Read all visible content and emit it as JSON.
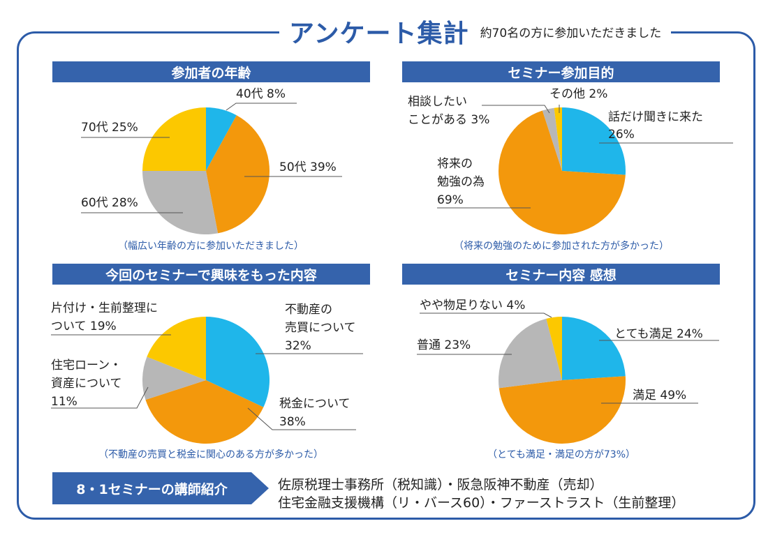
{
  "header": {
    "title": "アンケート集計",
    "subtitle": "約70名の方に参加いただきました"
  },
  "colors": {
    "brand": "#3563ac",
    "cyan": "#1fb6ea",
    "orange": "#f3980c",
    "gray": "#b7b7b7",
    "yellow": "#fcc800"
  },
  "chart_data": [
    {
      "type": "pie",
      "title": "参加者の年齢",
      "caption": "（幅広い年齢の方に参加いただきました）",
      "slices": [
        {
          "label": "40代 8%",
          "value": 8,
          "color": "#1fb6ea"
        },
        {
          "label": "50代 39%",
          "value": 39,
          "color": "#f3980c"
        },
        {
          "label": "60代 28%",
          "value": 28,
          "color": "#b7b7b7"
        },
        {
          "label": "70代 25%",
          "value": 25,
          "color": "#fcc800"
        }
      ]
    },
    {
      "type": "pie",
      "title": "セミナー参加目的",
      "caption": "（将来の勉強のために参加された方が多かった）",
      "slices": [
        {
          "label": "話だけ聞きに来た 26%",
          "value": 26,
          "color": "#1fb6ea"
        },
        {
          "label": "将来の 勉強の為 69%",
          "value": 69,
          "color": "#f3980c"
        },
        {
          "label": "相談したい ことがある 3%",
          "value": 3,
          "color": "#b7b7b7"
        },
        {
          "label": "その他 2%",
          "value": 2,
          "color": "#fcc800"
        }
      ]
    },
    {
      "type": "pie",
      "title": "今回のセミナーで興味をもった内容",
      "caption": "（不動産の売買と税金に関心のある方が多かった）",
      "slices": [
        {
          "label": "不動産の 売買について 32%",
          "value": 32,
          "color": "#1fb6ea"
        },
        {
          "label": "税金について 38%",
          "value": 38,
          "color": "#f3980c"
        },
        {
          "label": "住宅ローン・ 資産について 11%",
          "value": 11,
          "color": "#b7b7b7"
        },
        {
          "label": "片付け・生前整理に ついて 19%",
          "value": 19,
          "color": "#fcc800"
        }
      ]
    },
    {
      "type": "pie",
      "title": "セミナー内容 感想",
      "caption": "（とても満足・満足の方が73%）",
      "slices": [
        {
          "label": "とても満足 24%",
          "value": 24,
          "color": "#1fb6ea"
        },
        {
          "label": "満足 49%",
          "value": 49,
          "color": "#f3980c"
        },
        {
          "label": "普通 23%",
          "value": 23,
          "color": "#b7b7b7"
        },
        {
          "label": "やや物足りない 4%",
          "value": 4,
          "color": "#fcc800"
        }
      ]
    }
  ],
  "footer": {
    "badge": "8・1セミナーの講師紹介",
    "line1": "佐原税理士事務所（税知識）・阪急阪神不動産（売却）",
    "line2": "住宅金融支援機構（リ・バース60）・ファーストラスト（生前整理）"
  }
}
